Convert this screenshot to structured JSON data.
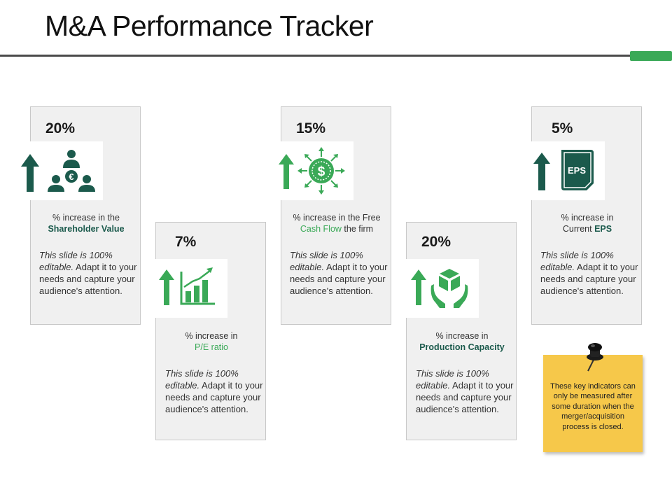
{
  "title": "M&A Performance Tracker",
  "colors": {
    "dark_green": "#1b5a4c",
    "green": "#3aa957",
    "note_yellow": "#f6c84a",
    "card_bg": "#f0f0f0"
  },
  "cards": [
    {
      "percent": "20%",
      "icon": "shareholder-value-icon",
      "caption_pre": "% increase in the",
      "caption_highlight": "Shareholder Value",
      "caption_post": "",
      "desc_italic": "This slide is 100% editable.",
      "desc_rest": " Adapt it to your needs and capture your audience's attention."
    },
    {
      "percent": "7%",
      "icon": "pe-ratio-chart-icon",
      "caption_pre": "% increase in",
      "caption_highlight": "P/E ratio",
      "caption_post": "",
      "desc_italic": "This slide is 100% editable.",
      "desc_rest": " Adapt it to your needs and capture your audience's attention."
    },
    {
      "percent": "15%",
      "icon": "cash-flow-dollar-icon",
      "caption_pre": "% increase in the Free",
      "caption_highlight": "Cash Flow",
      "caption_post": " the firm",
      "desc_italic": "This slide is 100% editable.",
      "desc_rest": " Adapt it to your needs and capture your audience's attention."
    },
    {
      "percent": "20%",
      "icon": "production-capacity-icon",
      "caption_pre": "% increase in",
      "caption_highlight": "Production Capacity",
      "caption_post": "",
      "desc_italic": "This slide is 100% editable.",
      "desc_rest": " Adapt it to your needs and capture your audience's attention."
    },
    {
      "percent": "5%",
      "icon": "eps-document-icon",
      "caption_pre": "% increase in",
      "caption_highlight": "EPS",
      "caption_post": "",
      "caption_prefix_line2": "Current ",
      "desc_italic": "This slide is 100% editable.",
      "desc_rest": " Adapt it to your needs and capture your audience's attention."
    }
  ],
  "icon_labels": {
    "eps": "EPS",
    "euro": "€"
  },
  "note": {
    "text": "These key indicators can only be measured after some duration when the merger/acquisition process is closed."
  }
}
